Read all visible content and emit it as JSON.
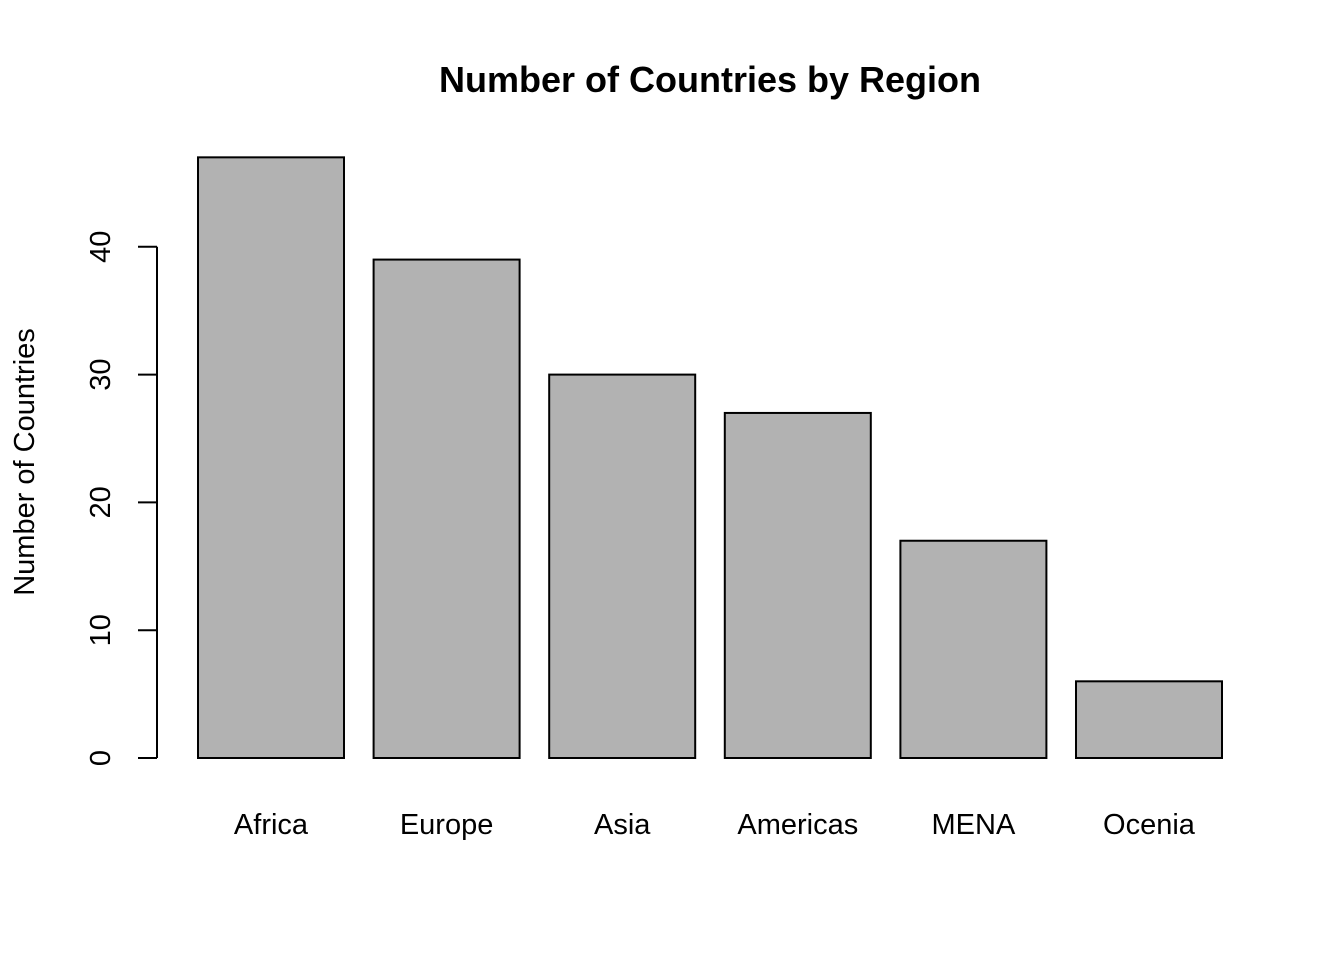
{
  "chart_data": {
    "type": "bar",
    "title": "Number of Countries by Region",
    "xlabel": "",
    "ylabel": "Number of Countries",
    "categories": [
      "Africa",
      "Europe",
      "Asia",
      "Americas",
      "MENA",
      "Ocenia"
    ],
    "values": [
      47,
      39,
      30,
      27,
      17,
      6
    ],
    "ylim": [
      0,
      47
    ],
    "yticks": [
      0,
      10,
      20,
      30,
      40
    ],
    "bar_color": "#b2b2b2",
    "grid": false,
    "legend": "none"
  }
}
